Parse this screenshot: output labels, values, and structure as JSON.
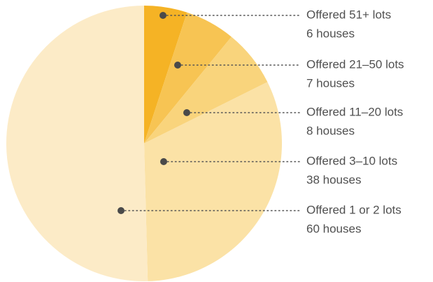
{
  "chart_data": {
    "type": "pie",
    "categories": [
      "Offered 51+ lots",
      "Offered 21–50 lots",
      "Offered 11–20 lots",
      "Offered 3–10 lots",
      "Offered 1 or 2 lots"
    ],
    "values": [
      6,
      7,
      8,
      38,
      60
    ],
    "value_labels": [
      "6 houses",
      "7 houses",
      "8 houses",
      "38 houses",
      "60 houses"
    ],
    "colors": [
      "#f5b325",
      "#f7c453",
      "#f9d47c",
      "#fbe2a6",
      "#fcebc7"
    ]
  }
}
